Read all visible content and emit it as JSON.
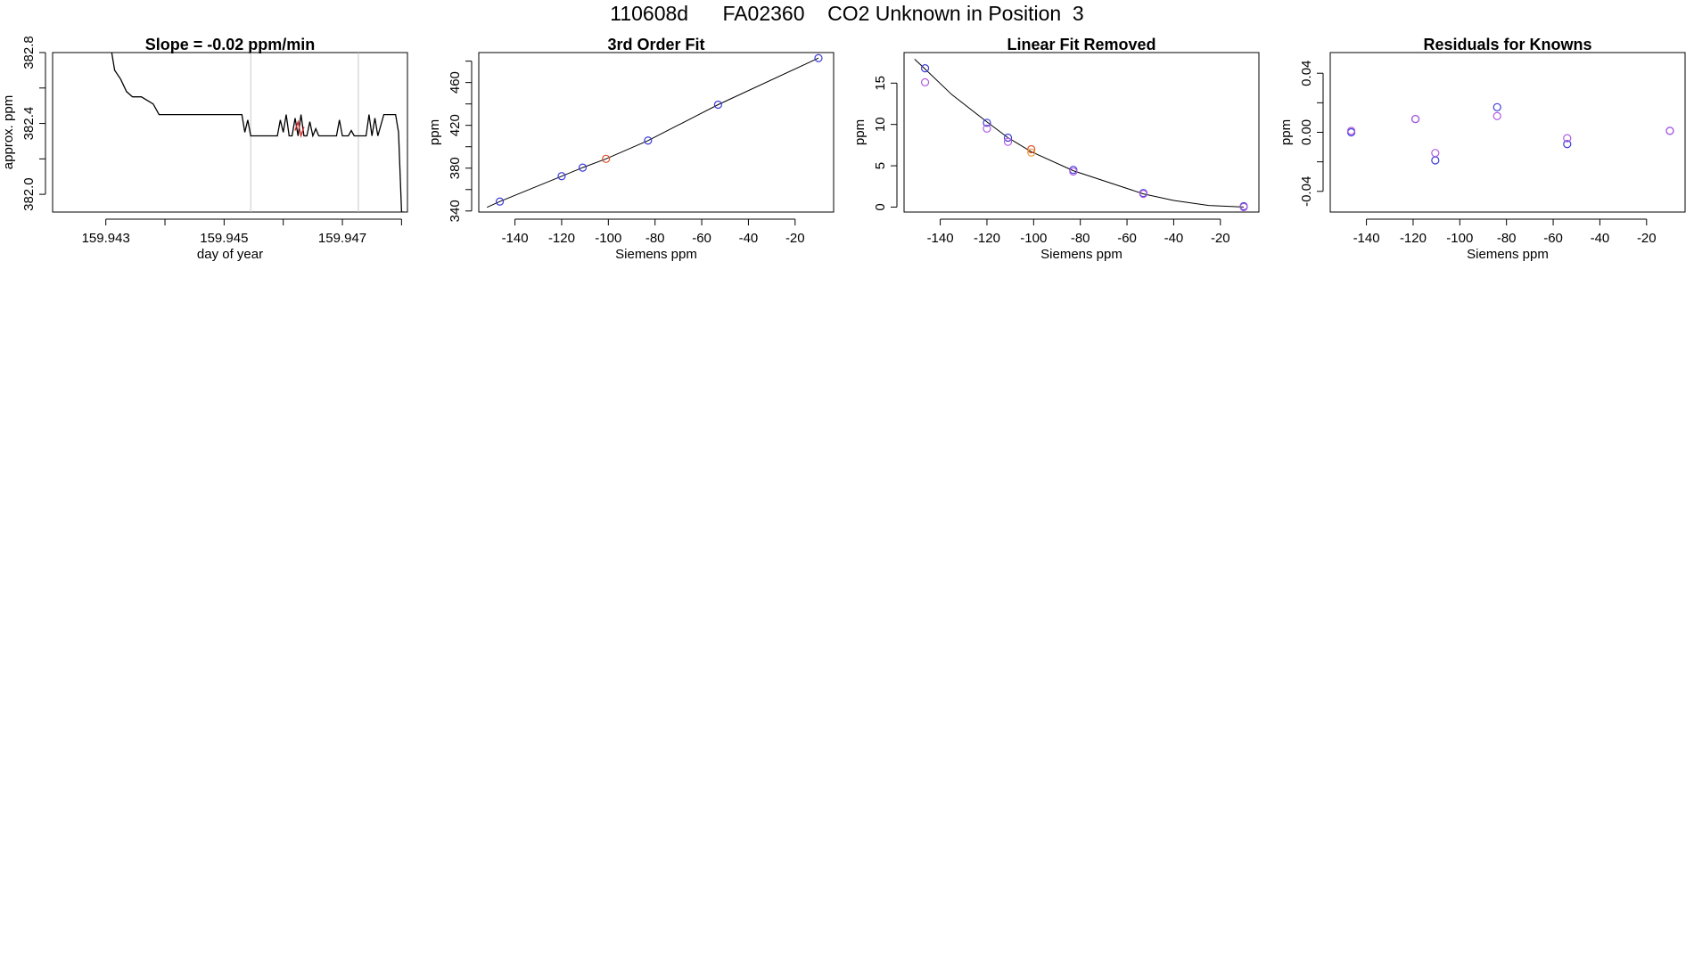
{
  "page_title": "110608d      FA02360    CO2 Unknown in Position  3",
  "chart_data": [
    {
      "type": "line",
      "title": "Slope =  -0.02  ppm/min",
      "xlabel": "day of year",
      "ylabel": "approx. ppm",
      "xlim": [
        159.9421,
        159.9481
      ],
      "ylim": [
        381.9,
        382.8
      ],
      "xticks": [
        "159.943",
        "159.945",
        "159.947"
      ],
      "xtick_values": [
        159.943,
        159.945,
        159.947
      ],
      "minor_xticks": [
        159.944,
        159.946,
        159.948
      ],
      "yticks": [
        "382.0",
        "382.4",
        "382.8"
      ],
      "ytick_values": [
        382.0,
        382.4,
        382.8
      ],
      "minor_yticks": [
        382.2,
        382.6
      ],
      "vlines": [
        159.94545,
        159.94727
      ],
      "grid": false,
      "series": [
        {
          "color": "#000000",
          "x": [
            159.9431,
            159.94315,
            159.94325,
            159.94335,
            159.94345,
            159.9436,
            159.9438,
            159.9439,
            159.9442,
            159.9445,
            159.9448,
            159.9451,
            159.9453,
            159.94535,
            159.9454,
            159.94545,
            159.9455,
            159.94555,
            159.9456,
            159.9458,
            159.9459,
            159.94595,
            159.946,
            159.94605,
            159.9461,
            159.94615,
            159.9462,
            159.94625,
            159.9463,
            159.94635,
            159.9464,
            159.94645,
            159.9465,
            159.94655,
            159.9466,
            159.94665,
            159.9467,
            159.94675,
            159.9469,
            159.94695,
            159.947,
            159.94705,
            159.9471,
            159.94715,
            159.9472,
            159.94725,
            159.9473,
            159.94735,
            159.9474,
            159.94745,
            159.9475,
            159.94755,
            159.9476,
            159.9477,
            159.9478,
            159.94785,
            159.9479,
            159.94795,
            159.948,
            159.94805
          ],
          "y": [
            382.8,
            382.7,
            382.65,
            382.58,
            382.55,
            382.55,
            382.51,
            382.45,
            382.45,
            382.45,
            382.45,
            382.45,
            382.45,
            382.35,
            382.42,
            382.33,
            382.33,
            382.33,
            382.33,
            382.33,
            382.33,
            382.42,
            382.35,
            382.45,
            382.33,
            382.33,
            382.43,
            382.33,
            382.45,
            382.33,
            382.33,
            382.41,
            382.33,
            382.37,
            382.33,
            382.33,
            382.33,
            382.33,
            382.33,
            382.42,
            382.33,
            382.33,
            382.33,
            382.36,
            382.33,
            382.33,
            382.33,
            382.33,
            382.33,
            382.45,
            382.33,
            382.43,
            382.33,
            382.45,
            382.45,
            382.45,
            382.45,
            382.35,
            381.9,
            381.9
          ]
        },
        {
          "color": "#d62728",
          "x": [
            159.9462,
            159.94625,
            159.9463,
            159.94635
          ],
          "y": [
            382.36,
            382.41,
            382.33,
            382.38
          ]
        }
      ]
    },
    {
      "type": "scatter",
      "title": "3rd Order Fit",
      "xlabel": "Siemens ppm",
      "ylabel": "ppm",
      "xlim": [
        -155.5,
        -3.5
      ],
      "ylim": [
        339,
        488
      ],
      "xticks": [
        "-140",
        "-120",
        "-100",
        "-80",
        "-60",
        "-40",
        "-20"
      ],
      "xtick_values": [
        -140,
        -120,
        -100,
        -80,
        -60,
        -40,
        -20
      ],
      "yticks": [
        "340",
        "380",
        "420",
        "460"
      ],
      "ytick_values": [
        340,
        380,
        420,
        460
      ],
      "minor_yticks": [
        360,
        400,
        440,
        480
      ],
      "curve": {
        "x": [
          -152,
          -146.5,
          -120,
          -111,
          -101,
          -83,
          -53,
          -10
        ],
        "y": [
          343.4,
          348.8,
          372.5,
          380.5,
          388.7,
          405.8,
          439.3,
          482.8
        ]
      },
      "series": [
        {
          "color": "#3b3bd9",
          "x": [
            -146.5,
            -120,
            -111,
            -83,
            -53,
            -10
          ],
          "y": [
            348.8,
            372.5,
            380.5,
            405.8,
            439.3,
            482.8
          ]
        },
        {
          "color": "#e0502a",
          "x": [
            -101
          ],
          "y": [
            388.7
          ]
        }
      ]
    },
    {
      "type": "scatter",
      "title": "Linear Fit Removed",
      "xlabel": "Siemens ppm",
      "ylabel": "ppm",
      "xlim": [
        -155.5,
        -3.5
      ],
      "ylim": [
        -0.6,
        18.7
      ],
      "xticks": [
        "-140",
        "-120",
        "-100",
        "-80",
        "-60",
        "-40",
        "-20"
      ],
      "xtick_values": [
        -140,
        -120,
        -100,
        -80,
        -60,
        -40,
        -20
      ],
      "yticks": [
        "0",
        "5",
        "10",
        "15"
      ],
      "ytick_values": [
        0,
        5,
        10,
        15
      ],
      "curve": {
        "x": [
          -151,
          -146.5,
          -135,
          -120,
          -111,
          -101,
          -83,
          -53,
          -40,
          -25,
          -10
        ],
        "y": [
          17.9,
          16.7,
          13.6,
          10.3,
          8.4,
          6.7,
          4.4,
          1.6,
          0.8,
          0.2,
          0.0
        ]
      },
      "series": [
        {
          "color": "#3b3bd9",
          "x": [
            -146.5,
            -120,
            -111,
            -83,
            -53,
            -10
          ],
          "y": [
            16.8,
            10.2,
            8.4,
            4.5,
            1.7,
            0.1
          ]
        },
        {
          "color": "#b05ae0",
          "x": [
            -146.5,
            -120,
            -111,
            -83,
            -53,
            -10
          ],
          "y": [
            15.1,
            9.5,
            7.9,
            4.3,
            1.6,
            0.0
          ]
        },
        {
          "color": "#e0502a",
          "x": [
            -101
          ],
          "y": [
            7.0
          ]
        },
        {
          "color": "#e8a040",
          "x": [
            -101
          ],
          "y": [
            6.6
          ]
        }
      ]
    },
    {
      "type": "scatter",
      "title": "Residuals for Knowns",
      "xlabel": "Siemens ppm",
      "ylabel": "ppm",
      "xlim": [
        -155.5,
        -3.5
      ],
      "ylim": [
        -0.054,
        0.054
      ],
      "xticks": [
        "-140",
        "-120",
        "-100",
        "-80",
        "-60",
        "-40",
        "-20"
      ],
      "xtick_values": [
        -140,
        -120,
        -100,
        -80,
        -60,
        -40,
        -20
      ],
      "yticks": [
        "-0.04",
        "0.00",
        "0.04"
      ],
      "ytick_values": [
        -0.04,
        0.0,
        0.04
      ],
      "minor_yticks": [
        -0.02,
        0.02
      ],
      "series": [
        {
          "color": "#3b3bd9",
          "x": [
            -146.5,
            -119,
            -110.5,
            -84,
            -54,
            -10
          ],
          "y": [
            0.0,
            0.009,
            -0.019,
            0.017,
            -0.008,
            0.001
          ]
        },
        {
          "color": "#b05ae0",
          "x": [
            -146.5,
            -119,
            -110.5,
            -84,
            -54,
            -10
          ],
          "y": [
            0.001,
            0.009,
            -0.014,
            0.011,
            -0.004,
            0.001
          ]
        }
      ]
    }
  ]
}
